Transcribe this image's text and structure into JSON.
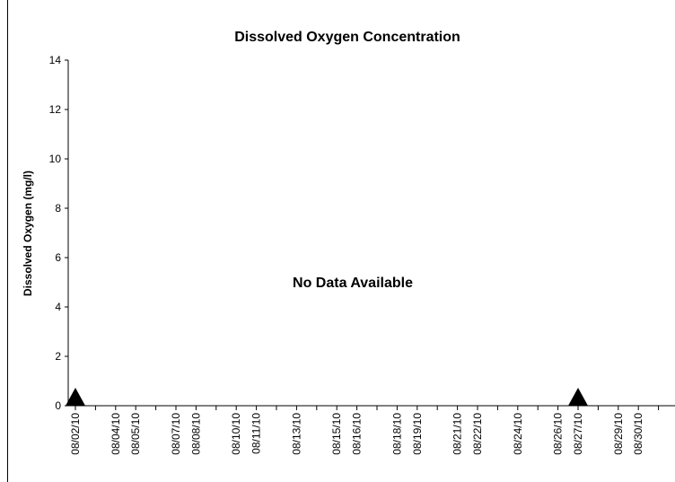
{
  "chart_data": {
    "type": "scatter",
    "title": "Dissolved Oxygen Concentration",
    "y_label": "Dissolved Oxygen (mg/l)",
    "annotation": "No Data Available",
    "categories": [
      "08/02/10",
      null,
      "08/04/10",
      "08/05/10",
      null,
      "08/07/10",
      "08/08/10",
      null,
      "08/10/10",
      "08/11/10",
      null,
      "08/13/10",
      null,
      "08/15/10",
      "08/16/10",
      null,
      "08/18/10",
      "08/19/10",
      null,
      "08/21/10",
      "08/22/10",
      null,
      "08/24/10",
      null,
      "08/26/10",
      "08/27/10",
      null,
      "08/29/10",
      "08/30/10",
      null
    ],
    "series": [
      {
        "color": "#000000",
        "marker": "triangle",
        "values": [
          0,
          null,
          null,
          null,
          null,
          null,
          null,
          null,
          null,
          null,
          null,
          null,
          null,
          null,
          null,
          null,
          null,
          null,
          null,
          null,
          null,
          null,
          null,
          null,
          null,
          0,
          null,
          null,
          null,
          null
        ]
      }
    ],
    "ylim": [
      0,
      14
    ],
    "yticks": [
      0,
      2,
      4,
      6,
      8,
      10,
      12,
      14
    ],
    "grid": false
  }
}
